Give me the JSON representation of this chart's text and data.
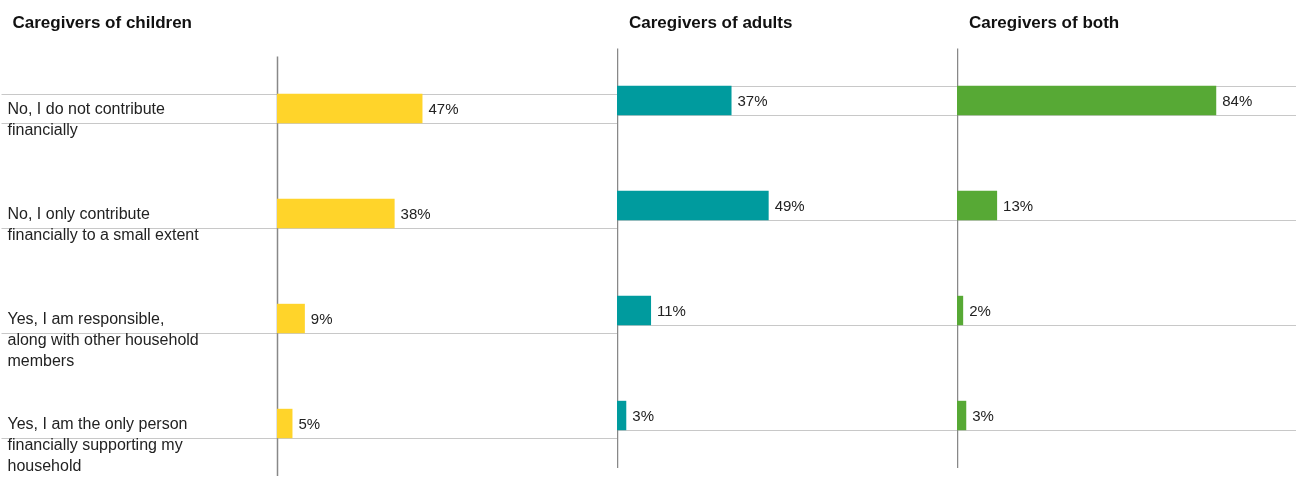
{
  "chart_data": [
    {
      "type": "bar",
      "orientation": "horizontal",
      "title": "Caregivers of children",
      "categories": [
        "No, I do not contribute financially",
        "No, I only contribute financially to a small extent",
        "Yes, I am responsible, along with other household members",
        "Yes, I am the only person financially supporting my household"
      ],
      "values": [
        47,
        38,
        9,
        5
      ],
      "value_labels": [
        "47%",
        "38%",
        "9%",
        "5%"
      ],
      "color": "#ffd42a",
      "grid": "y",
      "tick_labels": "y"
    },
    {
      "type": "bar",
      "orientation": "horizontal",
      "title": "Caregivers of adults",
      "values": [
        37,
        49,
        11,
        3
      ],
      "value_labels": [
        "37%",
        "49%",
        "11%",
        "3%"
      ],
      "color": "#009b9e",
      "grid": "y",
      "tick_labels": false
    },
    {
      "type": "bar",
      "orientation": "horizontal",
      "title": "Caregivers of both",
      "values": [
        84,
        13,
        2,
        3
      ],
      "value_labels": [
        "84%",
        "13%",
        "2%",
        "3%"
      ],
      "color": "#57a935",
      "grid": "y",
      "tick_labels": false
    }
  ]
}
